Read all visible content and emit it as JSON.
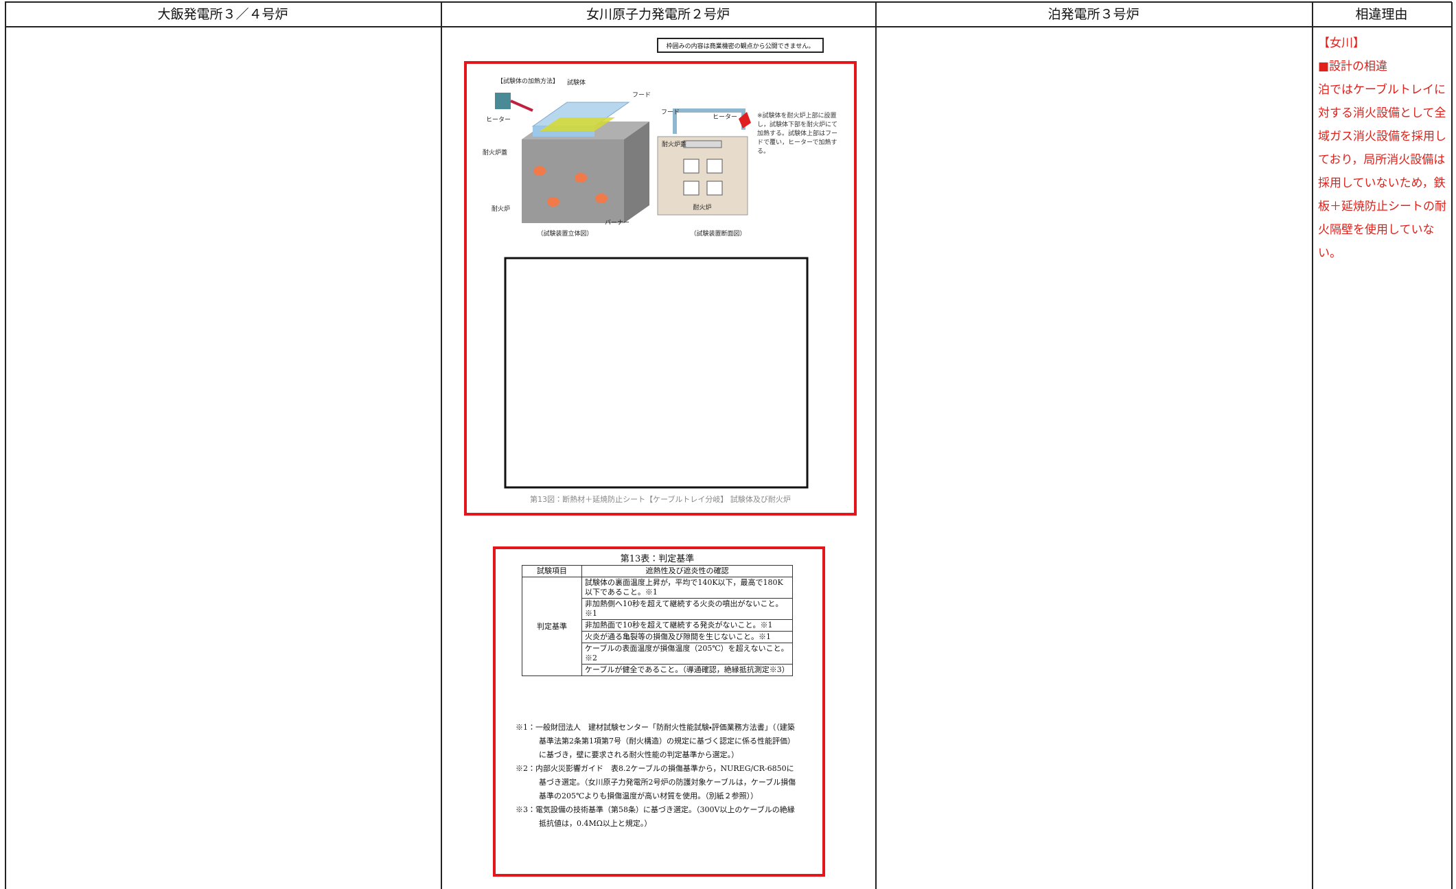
{
  "table": {
    "headers": [
      "大飯発電所３／４号炉",
      "女川原子力発電所２号炉",
      "泊発電所３号炉",
      "相違理由"
    ]
  },
  "onagawa": {
    "notice": "枠囲みの内容は商業機密の観点から公開できません。",
    "figure": {
      "heating_method": "【試験体の加熱方法】",
      "specimen": "試験体",
      "hood": "フード",
      "heater": "ヒーター",
      "furnace_lid": "耐火炉蓋",
      "furnace": "耐火炉",
      "burner": "バーナー",
      "view_3d": "（試験装置立体図）",
      "view_section": "（試験装置断面図）",
      "side_note": "※試験体を耐火炉上部に設置し，試験体下部を耐火炉にて加熱する。試験体上部はフードで覆い，ヒーターで加熱する。",
      "caption": "第13図：断熱材＋延焼防止シート【ケーブルトレイ分岐】 試験体及び耐火炉"
    },
    "table13": {
      "title": "第13表：判定基準",
      "header": [
        "試験項目",
        "遮熱性及び遮炎性の確認"
      ],
      "row_label": "判定基準",
      "criteria": [
        "試験体の裏面温度上昇が，平均で140K以下，最高で180K以下であること。※1",
        "非加熱側へ10秒を超えて継続する火炎の噴出がないこと。※1",
        "非加熱面で10秒を超えて継続する発炎がないこと。※1",
        "火炎が通る亀裂等の損傷及び隙間を生じないこと。※1",
        "ケーブルの表面温度が損傷温度（205℃）を超えないこと。※2",
        "ケーブルが健全であること。（導通確認，絶縁抵抗測定※3）"
      ],
      "notes": [
        "※1：一般財団法人　建材試験センター「防耐火性能試験・評価業務方法書」（（建築基準法第2条第1項第7号（耐火構造）の規定に基づく認定に係る性能評価）に基づき，壁に要求される耐火性能の判定基準から選定。）",
        "※2：内部火災影響ガイド　表8.2ケーブルの損傷基準から，NUREG/CR-6850に基づき選定。（女川原子力発電所2号炉の防護対象ケーブルは，ケーブル損傷基準の205℃よりも損傷温度が高い材質を使用。（別紙２参照））",
        "※3：電気設備の技術基準（第58条）に基づき選定。（300V以上のケーブルの絶縁抵抗値は，0.4MΩ以上と規定。）"
      ]
    }
  },
  "reason": {
    "tag": "【女川】",
    "heading": "■設計の相違",
    "body": "泊ではケーブルトレイに対する消火設備として全域ガス消火設備を採用しており，局所消火設備は採用していないため，鉄板＋延焼防止シートの耐火隔壁を使用していない。"
  }
}
